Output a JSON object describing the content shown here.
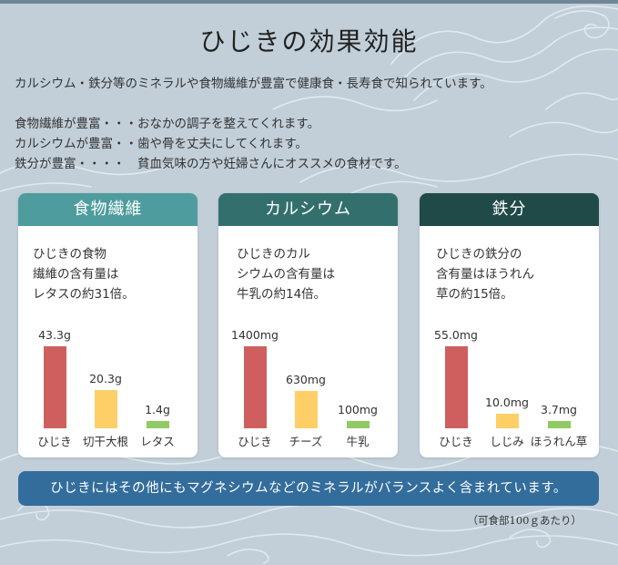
{
  "colors": {
    "background": "#c2cfd9",
    "wave": "#e4ecf1",
    "header_fiber": "#4e9c9d",
    "header_calcium": "#33706d",
    "header_iron": "#1f4a48",
    "bar_hijiki": "#cf5f5f",
    "bar_second": "#fdcf66",
    "bar_third": "#8fca62",
    "banner": "#336d9c"
  },
  "title": "ひじきの効果効能",
  "intro": "カルシウム・鉄分等のミネラルや食物繊維が豊富で健康食・長寿食で知られています。",
  "benefits": [
    "食物繊維が豊富・・・おなかの調子を整えてくれます。",
    "カルシウムが豊富・・歯や骨を丈夫にしてくれます。",
    "鉄分が豊富・・・・　貧血気味の方や妊婦さんにオススメの食材です。"
  ],
  "cards": [
    {
      "header": "食物繊維",
      "desc": [
        "ひじきの食物",
        "繊維の含有量は",
        "レタスの約31倍。"
      ],
      "chart_data": {
        "type": "bar",
        "categories": [
          "ひじき",
          "切干大根",
          "レタス"
        ],
        "values": [
          43.3,
          20.3,
          1.4
        ],
        "value_labels": [
          "43.3g",
          "20.3g",
          "1.4g"
        ]
      }
    },
    {
      "header": "カルシウム",
      "desc": [
        "ひじきのカル",
        "シウムの含有量は",
        "牛乳の約14倍。"
      ],
      "chart_data": {
        "type": "bar",
        "categories": [
          "ひじき",
          "チーズ",
          "牛乳"
        ],
        "values": [
          1400,
          630,
          100
        ],
        "value_labels": [
          "1400mg",
          "630mg",
          "100mg"
        ]
      }
    },
    {
      "header": "鉄分",
      "desc": [
        "ひじきの鉄分の",
        "含有量はほうれん",
        "草の約15倍。"
      ],
      "chart_data": {
        "type": "bar",
        "categories": [
          "ひじき",
          "しじみ",
          "ほうれん草"
        ],
        "values": [
          55.0,
          10.0,
          3.7
        ],
        "value_labels": [
          "55.0mg",
          "10.0mg",
          "3.7mg"
        ]
      }
    }
  ],
  "banner": "ひじきにはその他にもマグネシウムなどのミネラルがバランスよく含まれています。",
  "note": "（可食部100ｇあたり）"
}
